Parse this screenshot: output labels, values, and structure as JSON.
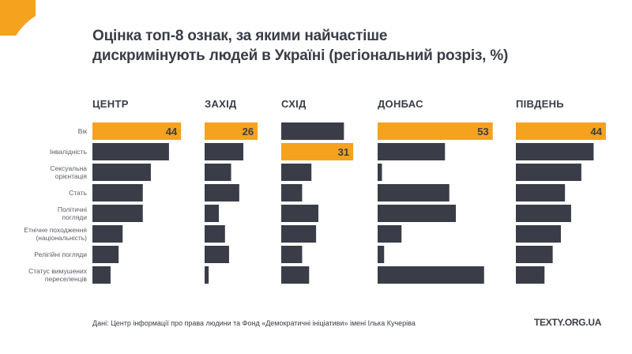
{
  "title_lines": [
    "Оцінка топ-8 ознак, за якими найчастіше",
    "дискримінують людей в Україні (регіональний розріз, %)"
  ],
  "source": "Дані: Центр інформації про права людини та Фонд «Демократичні ініціативи» імені Ілька Кучеріва",
  "brand": "TEXTY.ORG.UA",
  "colors": {
    "highlight": "#f5a21f",
    "bar": "#3a3d47",
    "text": "#3a3d47"
  },
  "chart_data": {
    "type": "bar",
    "orientation": "horizontal",
    "title": "Оцінка топ-8 ознак, за якими найчастіше дискримінують людей в Україні (регіональний розріз, %)",
    "xlabel": "",
    "ylabel": "",
    "unit": "%",
    "categories": [
      [
        "Вік"
      ],
      [
        "Інвалідність"
      ],
      [
        "Сексуальна",
        "орієнтація"
      ],
      [
        "Стать"
      ],
      [
        "Політичні",
        "погляди"
      ],
      [
        "Етнічне походження",
        "(національність)"
      ],
      [
        "Релігійні погляди"
      ],
      [
        "Статус вимушених",
        "переселенців"
      ]
    ],
    "series": [
      {
        "name": "ЦЕНТР",
        "values": [
          44,
          38,
          29,
          25,
          25,
          15,
          13,
          9
        ],
        "highlight_index": 0,
        "label": "44"
      },
      {
        "name": "ЗАХІД",
        "values": [
          26,
          19,
          13,
          17,
          7,
          10,
          12,
          2
        ],
        "highlight_index": 0,
        "label": "26"
      },
      {
        "name": "СХІД",
        "values": [
          27,
          31,
          13,
          9,
          16,
          15,
          9,
          12
        ],
        "highlight_index": 1,
        "label": "31"
      },
      {
        "name": "ДОНБАС",
        "values": [
          53,
          31,
          2,
          33,
          36,
          11,
          3,
          49
        ],
        "highlight_index": 0,
        "label": "53"
      },
      {
        "name": "ПІВДЕНЬ",
        "values": [
          44,
          38,
          32,
          24,
          27,
          22,
          18,
          14
        ],
        "highlight_index": 0,
        "label": "44"
      }
    ],
    "grid": false,
    "legend": "none"
  }
}
